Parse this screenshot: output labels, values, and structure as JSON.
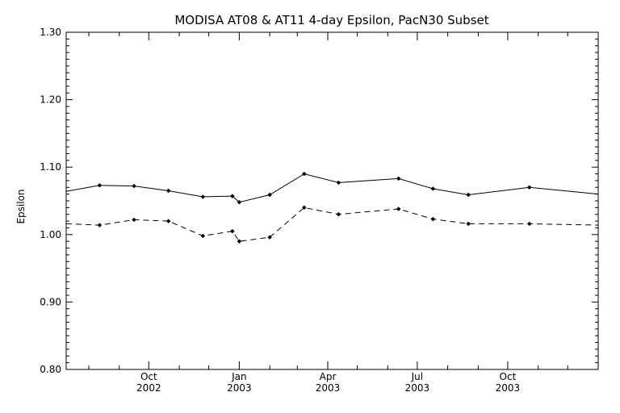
{
  "chart_data": {
    "type": "line",
    "title": "MODISA AT08 & AT11 4-day Epsilon, PacN30 Subset",
    "xlabel": "",
    "ylabel": "Epsilon",
    "xlim": [
      "2002-07-09",
      "2004-01-01"
    ],
    "ylim": [
      0.8,
      1.3
    ],
    "y_ticks": [
      "0.80",
      "0.90",
      "1.00",
      "1.10",
      "1.20",
      "1.30"
    ],
    "x_ticks": [
      {
        "date": "2002-10-01",
        "month": "Oct",
        "year": "2002"
      },
      {
        "date": "2003-01-01",
        "month": "Jan",
        "year": "2003"
      },
      {
        "date": "2003-04-01",
        "month": "Apr",
        "year": "2003"
      },
      {
        "date": "2003-07-01",
        "month": "Jul",
        "year": "2003"
      },
      {
        "date": "2003-10-01",
        "month": "Oct",
        "year": "2003"
      }
    ],
    "grid": false,
    "legend": "none",
    "series": [
      {
        "style": "solid",
        "color": "#000000",
        "points": [
          {
            "x": "2002-07-09",
            "y": 1.064
          },
          {
            "x": "2002-08-12",
            "y": 1.073
          },
          {
            "x": "2002-09-16",
            "y": 1.072
          },
          {
            "x": "2002-10-21",
            "y": 1.065
          },
          {
            "x": "2002-11-25",
            "y": 1.056
          },
          {
            "x": "2002-12-25",
            "y": 1.057
          },
          {
            "x": "2003-01-01",
            "y": 1.048
          },
          {
            "x": "2003-02-01",
            "y": 1.059
          },
          {
            "x": "2003-03-08",
            "y": 1.09
          },
          {
            "x": "2003-04-12",
            "y": 1.077
          },
          {
            "x": "2003-06-12",
            "y": 1.083
          },
          {
            "x": "2003-07-17",
            "y": 1.068
          },
          {
            "x": "2003-08-22",
            "y": 1.059
          },
          {
            "x": "2003-10-23",
            "y": 1.07
          },
          {
            "x": "2004-01-01",
            "y": 1.06
          }
        ]
      },
      {
        "style": "dashed",
        "color": "#000000",
        "points": [
          {
            "x": "2002-07-09",
            "y": 1.016
          },
          {
            "x": "2002-08-12",
            "y": 1.014
          },
          {
            "x": "2002-09-16",
            "y": 1.022
          },
          {
            "x": "2002-10-21",
            "y": 1.02
          },
          {
            "x": "2002-11-25",
            "y": 0.998
          },
          {
            "x": "2002-12-25",
            "y": 1.005
          },
          {
            "x": "2003-01-01",
            "y": 0.99
          },
          {
            "x": "2003-02-01",
            "y": 0.996
          },
          {
            "x": "2003-03-08",
            "y": 1.04
          },
          {
            "x": "2003-04-12",
            "y": 1.03
          },
          {
            "x": "2003-06-12",
            "y": 1.038
          },
          {
            "x": "2003-07-17",
            "y": 1.023
          },
          {
            "x": "2003-08-22",
            "y": 1.016
          },
          {
            "x": "2003-10-23",
            "y": 1.016
          },
          {
            "x": "2004-01-01",
            "y": 1.014
          }
        ]
      }
    ]
  }
}
